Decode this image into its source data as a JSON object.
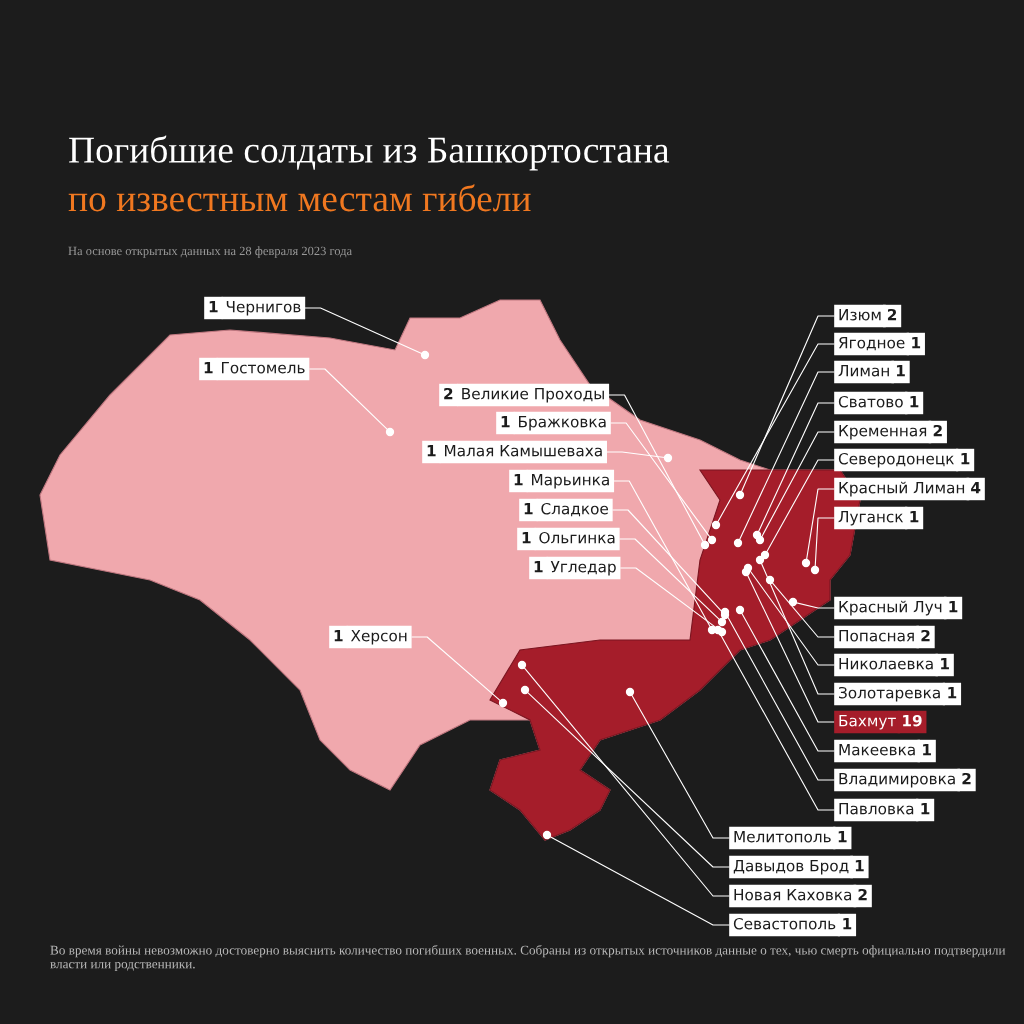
{
  "chart_data": {
    "type": "other",
    "title": "Погибшие солдаты из Башкортостана",
    "subtitle": "по известным местам гибели",
    "annotations": [
      "На основе открытых данных на 28 февраля 2023 года",
      "Во время войны невозможно достоверно выяснить количество погибших военных. Собраны из открытых источников данные о тех, чью смерть официально подтвердили власти или родственники."
    ],
    "categories": [
      "Чернигов",
      "Гостомель",
      "Великие Проходы",
      "Бражковка",
      "Малая Камышеваха",
      "Марьинка",
      "Сладкое",
      "Ольгинка",
      "Угледар",
      "Херсон",
      "Изюм",
      "Ягодное",
      "Лиман",
      "Сватово",
      "Кременная",
      "Северодонецк",
      "Красный Лиман",
      "Луганск",
      "Красный Луч",
      "Попасная",
      "Николаевка",
      "Золотаревка",
      "Бахмут",
      "Макеевка",
      "Владимировка",
      "Павловка",
      "Мелитополь",
      "Давыдов Брод",
      "Новая Каховка",
      "Севастополь"
    ],
    "values": [
      1,
      1,
      2,
      1,
      1,
      1,
      1,
      1,
      1,
      1,
      2,
      1,
      1,
      1,
      2,
      1,
      4,
      1,
      1,
      2,
      1,
      1,
      19,
      1,
      2,
      1,
      1,
      1,
      2,
      1
    ],
    "colors": [
      "#ffffff",
      "#ffffff",
      "#ffffff",
      "#ffffff",
      "#ffffff",
      "#ffffff",
      "#ffffff",
      "#ffffff",
      "#ffffff",
      "#ffffff",
      "#ffffff",
      "#ffffff",
      "#ffffff",
      "#ffffff",
      "#ffffff",
      "#ffffff",
      "#ffffff",
      "#ffffff",
      "#ffffff",
      "#ffffff",
      "#ffffff",
      "#ffffff",
      "#a51d2a",
      "#ffffff",
      "#ffffff",
      "#ffffff",
      "#ffffff",
      "#ffffff",
      "#ffffff",
      "#ffffff"
    ],
    "data_labels": true
  }
}
